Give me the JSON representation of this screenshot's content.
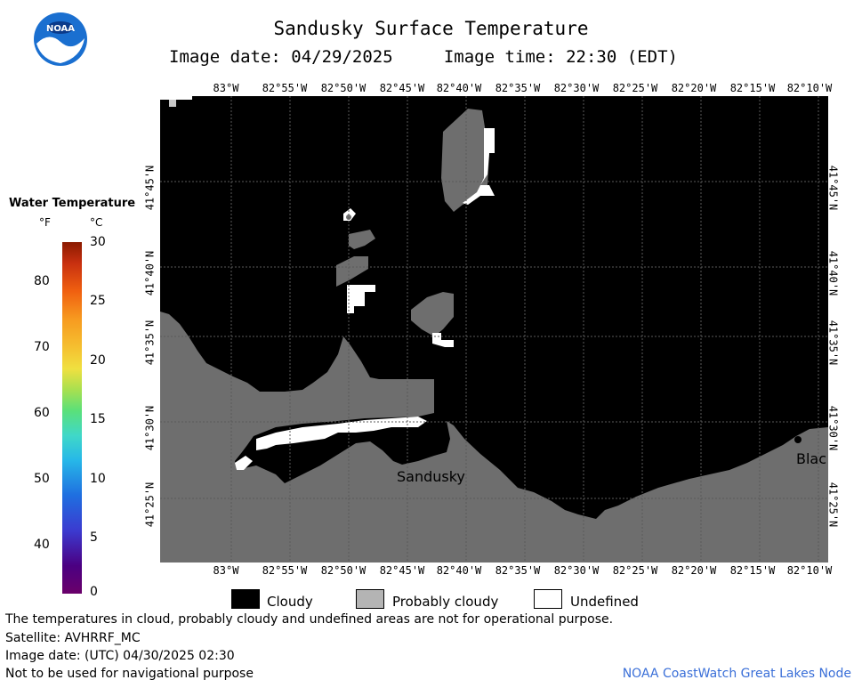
{
  "header": {
    "title": "Sandusky Surface Temperature",
    "image_date_line": "Image date: 04/29/2025     Image time: 22:30 (EDT)"
  },
  "logo": {
    "text": "NOAA",
    "icon": "noaa-logo-icon",
    "colors": {
      "ring": "#1a6fd0",
      "bird": "#ffffff",
      "text_bg": "#0b3a8a"
    }
  },
  "map": {
    "colors": {
      "cloudy": "#000000",
      "probably_cloudy": "#6e6e6e",
      "undefined": "#ffffff",
      "grid": "#5a5a5a"
    },
    "lon_labels": [
      "83°W",
      "82°55'W",
      "82°50'W",
      "82°45'W",
      "82°40'W",
      "82°35'W",
      "82°30'W",
      "82°25'W",
      "82°20'W",
      "82°15'W",
      "82°10'W"
    ],
    "lat_labels": [
      "41°45'N",
      "41°40'N",
      "41°35'N",
      "41°30'N",
      "41°25'N"
    ],
    "place_labels": {
      "sandusky": "Sandusky",
      "bla": "Blac"
    }
  },
  "colorbar": {
    "title": "Water Temperature",
    "unit_f": "°F",
    "unit_c": "°C",
    "f_ticks": [
      "80",
      "70",
      "60",
      "50",
      "40"
    ],
    "c_ticks": [
      "30",
      "25",
      "20",
      "15",
      "10",
      "5",
      "0"
    ]
  },
  "legend": {
    "cloudy": "Cloudy",
    "probably_cloudy": "Probably cloudy",
    "undefined": "Undefined"
  },
  "footer": {
    "disclaimer": "The temperatures in cloud, probably cloudy and undefined areas are not for operational purpose.",
    "satellite": "Satellite: AVHRRF_MC",
    "utc_date": "Image date: (UTC) 04/30/2025  02:30",
    "nav_warning": "Not to be used for navigational purpose",
    "node": "NOAA CoastWatch Great Lakes Node"
  }
}
